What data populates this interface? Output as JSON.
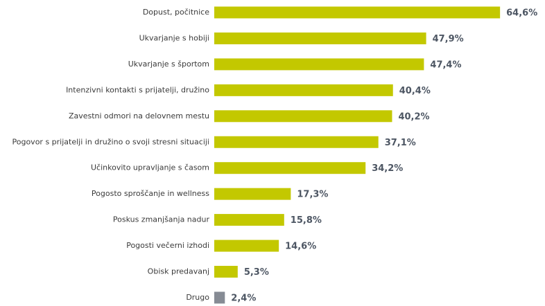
{
  "chart_data": {
    "type": "bar",
    "orientation": "horizontal",
    "categories": [
      "Dopust, počitnice",
      "Ukvarjanje s hobiji",
      "Ukvarjanje s športom",
      "Intenzivni kontakti s prijatelji, družino",
      "Zavestni odmori na delovnem mestu",
      "Pogovor s prijatelji in družino o svoji stresni situaciji",
      "Učinkovito upravljanje s časom",
      "Pogosto sproščanje in wellness",
      "Poskus zmanjšanja nadur",
      "Pogosti večerni izhodi",
      "Obisk predavanj",
      "Drugo"
    ],
    "values": [
      64.6,
      47.9,
      47.4,
      40.4,
      40.2,
      37.1,
      34.2,
      17.3,
      15.8,
      14.6,
      5.3,
      2.4
    ],
    "value_labels": [
      "64,6%",
      "47,9%",
      "47,4%",
      "40,4%",
      "40,2%",
      "37,1%",
      "34,2%",
      "17,3%",
      "15,8%",
      "14,6%",
      "5,3%",
      "2,4%"
    ],
    "colors": [
      "#c3c800",
      "#c3c800",
      "#c3c800",
      "#c3c800",
      "#c3c800",
      "#c3c800",
      "#c3c800",
      "#c3c800",
      "#c3c800",
      "#c3c800",
      "#c3c800",
      "#868b94"
    ]
  }
}
